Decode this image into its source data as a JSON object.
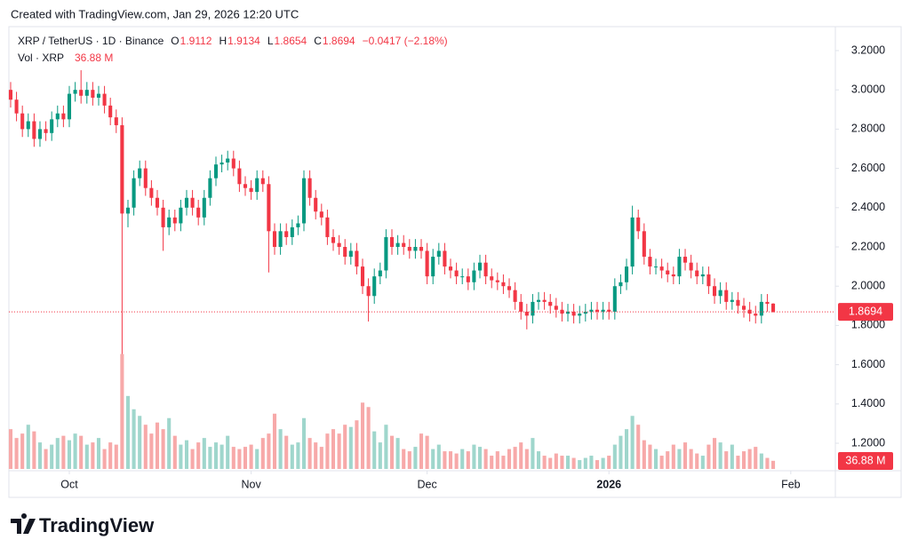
{
  "header": "Created with TradingView.com, Jan 29, 2026 12:20 UTC",
  "logo": "TradingView",
  "chart_data": {
    "type": "candlestick",
    "symbol": "XRP / TetherUS · 1D · Binance",
    "legend_keys": [
      "O",
      "H",
      "L",
      "C"
    ],
    "change": "−0.0417 (−2.18%)",
    "volume_title": "Vol · XRP",
    "last_volume_label": "36.88 M",
    "up_color": "#089981",
    "down_color": "#f23645",
    "volume_up_color": "#9fd6cc",
    "volume_down_color": "#f7a9a9",
    "grid": false,
    "xlim": [
      -0.3,
      140.6
    ],
    "xticks": [
      {
        "value": 10,
        "label": "Oct"
      },
      {
        "value": 41,
        "label": "Nov"
      },
      {
        "value": 71,
        "label": "Dec"
      },
      {
        "value": 102,
        "label": "2026"
      },
      {
        "value": 133,
        "label": "Feb"
      }
    ],
    "ylim": [
      1.069,
      3.322
    ],
    "yticks": [
      {
        "value": 3.2,
        "label": "3.2000"
      },
      {
        "value": 3.0,
        "label": "3.0000"
      },
      {
        "value": 2.8,
        "label": "2.8000"
      },
      {
        "value": 2.6,
        "label": "2.6000"
      },
      {
        "value": 2.4,
        "label": "2.4000"
      },
      {
        "value": 2.2,
        "label": "2.2000"
      },
      {
        "value": 2.0,
        "label": "2.0000"
      },
      {
        "value": 1.8,
        "label": "1.8000"
      },
      {
        "value": 1.6,
        "label": "1.6000"
      },
      {
        "value": 1.4,
        "label": "1.4000"
      },
      {
        "value": 1.2,
        "label": "1.2000"
      }
    ],
    "y2lim": [
      0,
      2000
    ],
    "open": [
      3.0,
      2.95,
      2.88,
      2.8,
      2.84,
      2.75,
      2.8,
      2.78,
      2.85,
      2.88,
      2.85,
      2.98,
      3.0,
      2.97,
      3.0,
      2.96,
      2.98,
      2.92,
      2.86,
      2.82,
      2.37,
      2.4,
      2.55,
      2.6,
      2.5,
      2.45,
      2.4,
      2.3,
      2.35,
      2.32,
      2.4,
      2.45,
      2.4,
      2.35,
      2.45,
      2.55,
      2.62,
      2.63,
      2.65,
      2.6,
      2.52,
      2.5,
      2.48,
      2.55,
      2.52,
      2.28,
      2.2,
      2.28,
      2.25,
      2.3,
      2.32,
      2.55,
      2.45,
      2.38,
      2.35,
      2.25,
      2.22,
      2.2,
      2.15,
      2.18,
      2.1,
      2.0,
      1.95,
      2.05,
      2.08,
      2.25,
      2.2,
      2.22,
      2.2,
      2.18,
      2.2,
      2.18,
      2.05,
      2.15,
      2.18,
      2.1,
      2.08,
      2.05,
      2.05,
      2.02,
      2.08,
      2.12,
      2.05,
      2.03,
      2.02,
      2.0,
      1.98,
      1.92,
      1.87,
      1.85,
      1.92,
      1.93,
      1.92,
      1.9,
      1.88,
      1.86,
      1.87,
      1.85,
      1.86,
      1.87,
      1.88,
      1.87,
      1.88,
      1.87,
      2.0,
      2.02,
      2.1,
      2.35,
      2.28,
      2.15,
      2.1,
      2.1,
      2.08,
      2.06,
      2.05,
      2.15,
      2.12,
      2.08,
      2.05,
      2.06,
      2.0,
      1.95,
      1.98,
      1.92,
      1.93,
      1.9,
      1.88,
      1.86,
      1.85,
      1.92,
      1.9112
    ],
    "high": [
      3.04,
      2.99,
      2.92,
      2.88,
      2.88,
      2.84,
      2.84,
      2.89,
      2.92,
      2.92,
      3.02,
      3.04,
      3.1,
      3.04,
      3.04,
      3.02,
      3.02,
      2.96,
      2.9,
      2.86,
      2.44,
      2.59,
      2.64,
      2.64,
      2.54,
      2.49,
      2.44,
      2.39,
      2.39,
      2.44,
      2.49,
      2.49,
      2.44,
      2.49,
      2.59,
      2.66,
      2.67,
      2.69,
      2.69,
      2.64,
      2.56,
      2.54,
      2.59,
      2.59,
      2.56,
      2.32,
      2.32,
      2.32,
      2.34,
      2.36,
      2.59,
      2.59,
      2.49,
      2.42,
      2.39,
      2.29,
      2.26,
      2.24,
      2.22,
      2.22,
      2.14,
      2.04,
      2.09,
      2.12,
      2.29,
      2.29,
      2.26,
      2.26,
      2.24,
      2.24,
      2.24,
      2.22,
      2.19,
      2.22,
      2.22,
      2.14,
      2.12,
      2.09,
      2.09,
      2.12,
      2.16,
      2.16,
      2.09,
      2.07,
      2.06,
      2.04,
      2.02,
      1.96,
      1.91,
      1.96,
      1.97,
      1.97,
      1.96,
      1.94,
      1.92,
      1.91,
      1.91,
      1.9,
      1.91,
      1.92,
      1.92,
      1.92,
      1.92,
      2.04,
      2.06,
      2.14,
      2.41,
      2.39,
      2.32,
      2.19,
      2.14,
      2.14,
      2.12,
      2.1,
      2.19,
      2.19,
      2.16,
      2.12,
      2.1,
      2.1,
      2.04,
      2.02,
      2.02,
      1.97,
      1.97,
      1.94,
      1.92,
      1.9,
      1.96,
      1.96,
      1.9134
    ],
    "low": [
      2.91,
      2.84,
      2.76,
      2.76,
      2.71,
      2.71,
      2.74,
      2.74,
      2.81,
      2.81,
      2.81,
      2.94,
      2.93,
      2.93,
      2.92,
      2.92,
      2.88,
      2.82,
      2.78,
      1.25,
      2.3,
      2.36,
      2.51,
      2.46,
      2.41,
      2.36,
      2.18,
      2.26,
      2.28,
      2.28,
      2.36,
      2.36,
      2.31,
      2.31,
      2.41,
      2.51,
      2.58,
      2.59,
      2.56,
      2.48,
      2.46,
      2.44,
      2.44,
      2.48,
      2.07,
      2.16,
      2.16,
      2.21,
      2.21,
      2.26,
      2.28,
      2.41,
      2.34,
      2.31,
      2.21,
      2.18,
      2.16,
      2.11,
      2.11,
      2.06,
      1.96,
      1.82,
      1.91,
      2.01,
      2.04,
      2.16,
      2.16,
      2.16,
      2.14,
      2.14,
      2.14,
      2.01,
      2.01,
      2.11,
      2.06,
      2.04,
      2.01,
      2.01,
      1.98,
      1.98,
      2.04,
      2.01,
      1.99,
      1.98,
      1.96,
      1.94,
      1.88,
      1.83,
      1.78,
      1.81,
      1.88,
      1.88,
      1.86,
      1.84,
      1.82,
      1.82,
      1.81,
      1.81,
      1.82,
      1.83,
      1.83,
      1.83,
      1.83,
      1.83,
      1.96,
      1.98,
      2.06,
      2.24,
      2.11,
      2.06,
      2.06,
      2.04,
      2.02,
      2.01,
      2.01,
      2.08,
      2.04,
      2.01,
      2.01,
      1.96,
      1.91,
      1.91,
      1.88,
      1.88,
      1.86,
      1.84,
      1.82,
      1.81,
      1.81,
      1.87,
      1.8654
    ],
    "close": [
      2.95,
      2.88,
      2.8,
      2.84,
      2.75,
      2.8,
      2.78,
      2.85,
      2.88,
      2.85,
      2.98,
      3.0,
      2.97,
      3.0,
      2.96,
      2.98,
      2.92,
      2.86,
      2.82,
      2.37,
      2.4,
      2.55,
      2.6,
      2.5,
      2.45,
      2.4,
      2.3,
      2.35,
      2.32,
      2.4,
      2.45,
      2.4,
      2.35,
      2.45,
      2.55,
      2.62,
      2.63,
      2.65,
      2.6,
      2.52,
      2.5,
      2.48,
      2.55,
      2.52,
      2.28,
      2.2,
      2.28,
      2.25,
      2.3,
      2.32,
      2.55,
      2.45,
      2.38,
      2.35,
      2.25,
      2.22,
      2.2,
      2.15,
      2.18,
      2.1,
      2.0,
      1.95,
      2.05,
      2.08,
      2.25,
      2.2,
      2.22,
      2.2,
      2.18,
      2.2,
      2.18,
      2.05,
      2.15,
      2.18,
      2.1,
      2.08,
      2.05,
      2.05,
      2.02,
      2.08,
      2.12,
      2.05,
      2.03,
      2.02,
      2.0,
      1.98,
      1.92,
      1.87,
      1.85,
      1.92,
      1.93,
      1.92,
      1.9,
      1.88,
      1.86,
      1.87,
      1.85,
      1.86,
      1.87,
      1.88,
      1.87,
      1.88,
      1.87,
      2.0,
      2.02,
      2.1,
      2.35,
      2.28,
      2.15,
      2.1,
      2.1,
      2.08,
      2.06,
      2.05,
      2.15,
      2.12,
      2.08,
      2.05,
      2.06,
      2.0,
      1.95,
      1.98,
      1.92,
      1.93,
      1.9,
      1.88,
      1.86,
      1.85,
      1.92,
      1.91,
      1.8694
    ],
    "volume": [
      180,
      140,
      160,
      200,
      170,
      120,
      90,
      110,
      140,
      150,
      130,
      160,
      150,
      110,
      120,
      140,
      90,
      120,
      110,
      520,
      330,
      270,
      240,
      200,
      160,
      210,
      180,
      230,
      150,
      110,
      130,
      90,
      120,
      140,
      100,
      120,
      110,
      150,
      100,
      90,
      100,
      110,
      90,
      140,
      160,
      250,
      180,
      150,
      110,
      120,
      230,
      140,
      120,
      100,
      160,
      180,
      160,
      200,
      190,
      220,
      300,
      280,
      170,
      120,
      200,
      150,
      140,
      90,
      80,
      100,
      160,
      150,
      90,
      110,
      80,
      80,
      70,
      90,
      80,
      110,
      100,
      90,
      60,
      80,
      60,
      90,
      100,
      120,
      90,
      140,
      80,
      60,
      50,
      70,
      60,
      60,
      50,
      40,
      50,
      60,
      40,
      50,
      60,
      110,
      150,
      180,
      240,
      200,
      130,
      110,
      90,
      60,
      80,
      110,
      90,
      120,
      90,
      70,
      60,
      110,
      140,
      120,
      80,
      110,
      60,
      80,
      90,
      100,
      70,
      50,
      36.88
    ]
  }
}
